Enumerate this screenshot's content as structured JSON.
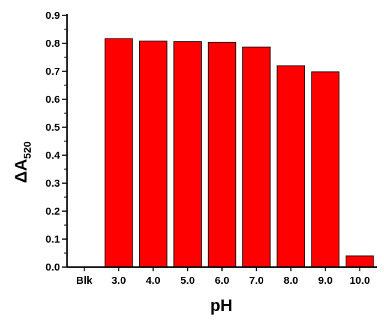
{
  "chart_data": {
    "type": "bar",
    "xlabel": "pH",
    "ylabel_main": "ΔA",
    "ylabel_sub": "520",
    "categories": [
      "Blk",
      "3.0",
      "4.0",
      "5.0",
      "6.0",
      "7.0",
      "8.0",
      "9.0",
      "10.0"
    ],
    "values": [
      0.0,
      0.817,
      0.808,
      0.806,
      0.804,
      0.787,
      0.72,
      0.698,
      0.04
    ],
    "ylim": [
      0.0,
      0.9
    ],
    "yticks": [
      "0.0",
      "0.1",
      "0.2",
      "0.3",
      "0.4",
      "0.5",
      "0.6",
      "0.7",
      "0.8",
      "0.9"
    ],
    "bar_color": "#ff0000",
    "bar_edge_color": "#000000",
    "grid": false,
    "legend": "none"
  }
}
